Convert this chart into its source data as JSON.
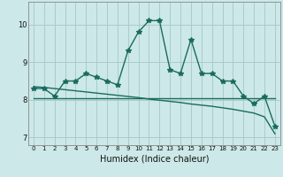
{
  "title": "",
  "xlabel": "Humidex (Indice chaleur)",
  "ylabel": "",
  "bg_color": "#cce8e8",
  "grid_color": "#aacccc",
  "line_color": "#1a6b5e",
  "x_values": [
    0,
    1,
    2,
    3,
    4,
    5,
    6,
    7,
    8,
    9,
    10,
    11,
    12,
    13,
    14,
    15,
    16,
    17,
    18,
    19,
    20,
    21,
    22,
    23
  ],
  "y_series1": [
    8.3,
    8.3,
    8.1,
    8.5,
    8.5,
    8.7,
    8.6,
    8.5,
    8.4,
    9.3,
    9.8,
    10.1,
    10.1,
    8.8,
    8.7,
    9.6,
    8.7,
    8.7,
    8.5,
    8.5,
    8.1,
    7.9,
    8.1,
    7.3
  ],
  "y_linear": [
    8.35,
    8.33,
    8.3,
    8.27,
    8.24,
    8.21,
    8.18,
    8.15,
    8.12,
    8.09,
    8.06,
    8.02,
    7.99,
    7.96,
    7.93,
    7.89,
    7.86,
    7.83,
    7.79,
    7.75,
    7.7,
    7.65,
    7.55,
    7.1
  ],
  "y_flat": [
    8.05,
    8.05,
    8.05,
    8.05,
    8.05,
    8.05,
    8.05,
    8.05,
    8.05,
    8.05,
    8.05,
    8.05,
    8.05,
    8.05,
    8.05,
    8.05,
    8.05,
    8.05,
    8.05,
    8.05,
    8.05,
    8.05,
    8.05,
    8.05
  ],
  "ylim": [
    6.8,
    10.6
  ],
  "yticks": [
    7,
    8,
    9,
    10
  ],
  "xticks": [
    0,
    1,
    2,
    3,
    4,
    5,
    6,
    7,
    8,
    9,
    10,
    11,
    12,
    13,
    14,
    15,
    16,
    17,
    18,
    19,
    20,
    21,
    22,
    23
  ],
  "marker": "*",
  "markersize": 4,
  "linewidth": 1.0
}
